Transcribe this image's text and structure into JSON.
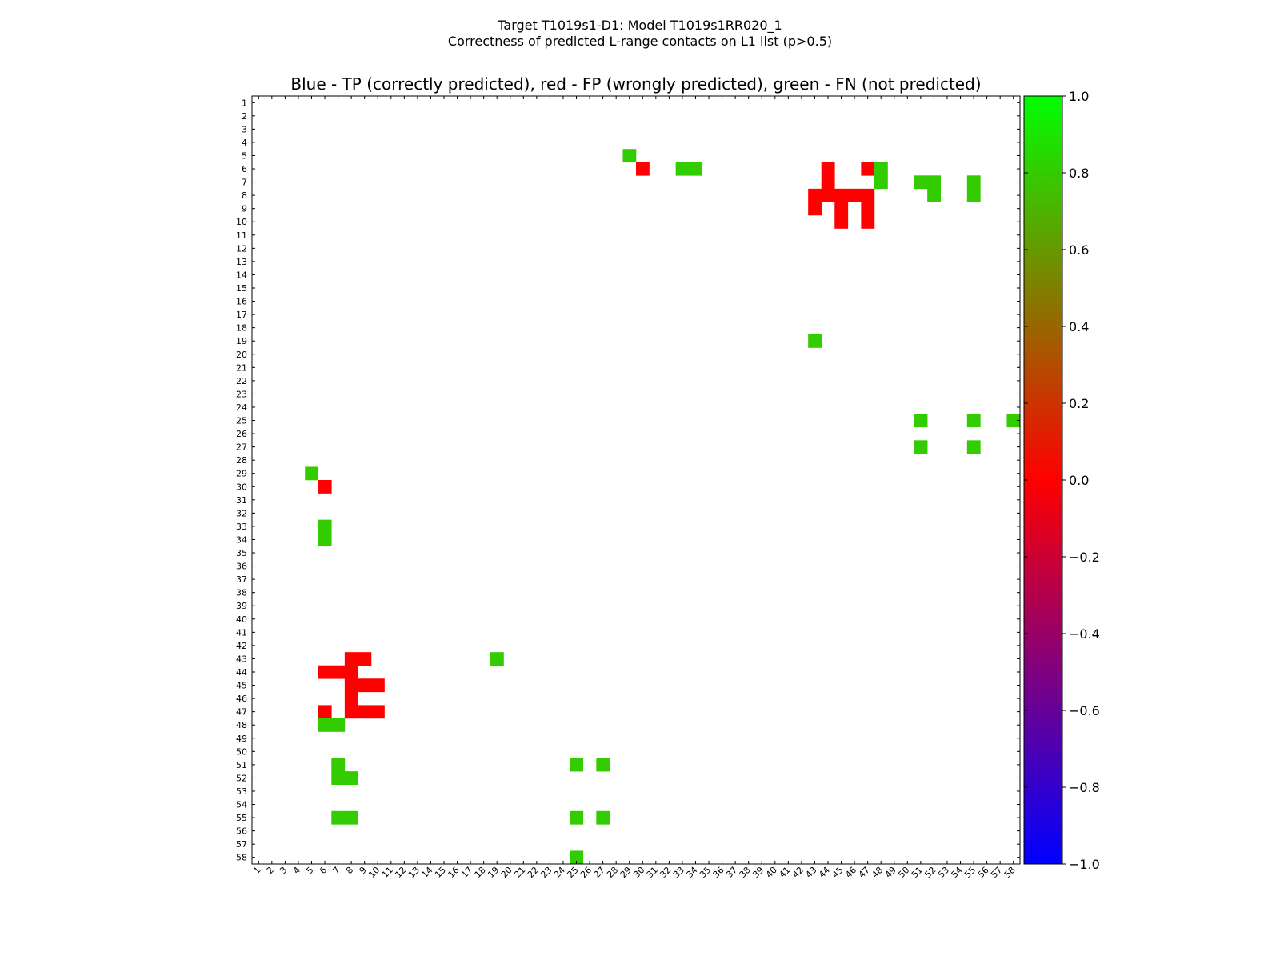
{
  "figure": {
    "title_line1": "Target T1019s1-D1: Model T1019s1RR020_1",
    "title_line2": "Correctness of predicted L-range contacts on L1 list (p>0.5)",
    "axes_title": "Blue - TP (correctly predicted), red - FP (wrongly predicted), green - FN (not predicted)"
  },
  "colors": {
    "tp": "#0000ff",
    "fp": "#ff0000",
    "fn": "#33cc00",
    "background": "#ffffff"
  },
  "chart_data": {
    "type": "heatmap",
    "title": "Blue - TP (correctly predicted), red - FP (wrongly predicted), green - FN (not predicted)",
    "xlabel": "",
    "ylabel": "",
    "x_ticks": [
      "1",
      "2",
      "3",
      "4",
      "5",
      "6",
      "7",
      "8",
      "9",
      "10",
      "11",
      "12",
      "13",
      "14",
      "15",
      "16",
      "17",
      "18",
      "19",
      "20",
      "21",
      "22",
      "23",
      "24",
      "25",
      "26",
      "27",
      "28",
      "29",
      "30",
      "31",
      "32",
      "33",
      "34",
      "35",
      "36",
      "37",
      "38",
      "39",
      "40",
      "41",
      "42",
      "43",
      "44",
      "45",
      "46",
      "47",
      "48",
      "49",
      "50",
      "51",
      "52",
      "53",
      "54",
      "55",
      "56",
      "57",
      "58"
    ],
    "y_ticks": [
      "1",
      "2",
      "3",
      "4",
      "5",
      "6",
      "7",
      "8",
      "9",
      "10",
      "11",
      "12",
      "13",
      "14",
      "15",
      "16",
      "17",
      "18",
      "19",
      "20",
      "21",
      "22",
      "23",
      "24",
      "25",
      "26",
      "27",
      "28",
      "29",
      "30",
      "31",
      "32",
      "33",
      "34",
      "35",
      "36",
      "37",
      "38",
      "39",
      "40",
      "41",
      "42",
      "43",
      "44",
      "45",
      "46",
      "47",
      "48",
      "49",
      "50",
      "51",
      "52",
      "53",
      "54",
      "55",
      "56",
      "57",
      "58"
    ],
    "grid": false,
    "colorbar": {
      "vmin": -1.0,
      "vmax": 1.0,
      "tick_labels": [
        "1.0",
        "0.8",
        "0.6",
        "0.4",
        "0.2",
        "0.0",
        "−0.2",
        "−0.4",
        "−0.6",
        "−0.8",
        "−1.0"
      ],
      "tick_values": [
        1.0,
        0.8,
        0.6,
        0.4,
        0.2,
        0.0,
        -0.2,
        -0.4,
        -0.6,
        -0.8,
        -1.0
      ],
      "colormap": "brg"
    },
    "cells": [
      {
        "x": 29,
        "y": 5,
        "value": 0.8
      },
      {
        "x": 30,
        "y": 6,
        "value": 0.0
      },
      {
        "x": 33,
        "y": 6,
        "value": 0.8
      },
      {
        "x": 34,
        "y": 6,
        "value": 0.8
      },
      {
        "x": 44,
        "y": 6,
        "value": 0.0
      },
      {
        "x": 47,
        "y": 6,
        "value": 0.0
      },
      {
        "x": 48,
        "y": 6,
        "value": 0.8
      },
      {
        "x": 44,
        "y": 7,
        "value": 0.0
      },
      {
        "x": 48,
        "y": 7,
        "value": 0.8
      },
      {
        "x": 51,
        "y": 7,
        "value": 0.8
      },
      {
        "x": 52,
        "y": 7,
        "value": 0.8
      },
      {
        "x": 55,
        "y": 7,
        "value": 0.8
      },
      {
        "x": 43,
        "y": 8,
        "value": 0.0
      },
      {
        "x": 44,
        "y": 8,
        "value": 0.0
      },
      {
        "x": 45,
        "y": 8,
        "value": 0.0
      },
      {
        "x": 46,
        "y": 8,
        "value": 0.0
      },
      {
        "x": 47,
        "y": 8,
        "value": 0.0
      },
      {
        "x": 52,
        "y": 8,
        "value": 0.8
      },
      {
        "x": 55,
        "y": 8,
        "value": 0.8
      },
      {
        "x": 43,
        "y": 9,
        "value": 0.0
      },
      {
        "x": 45,
        "y": 9,
        "value": 0.0
      },
      {
        "x": 47,
        "y": 9,
        "value": 0.0
      },
      {
        "x": 45,
        "y": 10,
        "value": 0.0
      },
      {
        "x": 47,
        "y": 10,
        "value": 0.0
      },
      {
        "x": 43,
        "y": 19,
        "value": 0.8
      },
      {
        "x": 51,
        "y": 25,
        "value": 0.8
      },
      {
        "x": 55,
        "y": 25,
        "value": 0.8
      },
      {
        "x": 58,
        "y": 25,
        "value": 0.8
      },
      {
        "x": 51,
        "y": 27,
        "value": 0.8
      },
      {
        "x": 55,
        "y": 27,
        "value": 0.8
      },
      {
        "x": 5,
        "y": 29,
        "value": 0.8
      },
      {
        "x": 6,
        "y": 30,
        "value": 0.0
      },
      {
        "x": 6,
        "y": 33,
        "value": 0.8
      },
      {
        "x": 6,
        "y": 34,
        "value": 0.8
      },
      {
        "x": 8,
        "y": 43,
        "value": 0.0
      },
      {
        "x": 9,
        "y": 43,
        "value": 0.0
      },
      {
        "x": 19,
        "y": 43,
        "value": 0.8
      },
      {
        "x": 6,
        "y": 44,
        "value": 0.0
      },
      {
        "x": 7,
        "y": 44,
        "value": 0.0
      },
      {
        "x": 8,
        "y": 44,
        "value": 0.0
      },
      {
        "x": 8,
        "y": 45,
        "value": 0.0
      },
      {
        "x": 9,
        "y": 45,
        "value": 0.0
      },
      {
        "x": 10,
        "y": 45,
        "value": 0.0
      },
      {
        "x": 8,
        "y": 46,
        "value": 0.0
      },
      {
        "x": 6,
        "y": 47,
        "value": 0.0
      },
      {
        "x": 8,
        "y": 47,
        "value": 0.0
      },
      {
        "x": 9,
        "y": 47,
        "value": 0.0
      },
      {
        "x": 10,
        "y": 47,
        "value": 0.0
      },
      {
        "x": 6,
        "y": 48,
        "value": 0.8
      },
      {
        "x": 7,
        "y": 48,
        "value": 0.8
      },
      {
        "x": 7,
        "y": 51,
        "value": 0.8
      },
      {
        "x": 25,
        "y": 51,
        "value": 0.8
      },
      {
        "x": 27,
        "y": 51,
        "value": 0.8
      },
      {
        "x": 7,
        "y": 52,
        "value": 0.8
      },
      {
        "x": 8,
        "y": 52,
        "value": 0.8
      },
      {
        "x": 7,
        "y": 55,
        "value": 0.8
      },
      {
        "x": 8,
        "y": 55,
        "value": 0.8
      },
      {
        "x": 25,
        "y": 55,
        "value": 0.8
      },
      {
        "x": 27,
        "y": 55,
        "value": 0.8
      },
      {
        "x": 25,
        "y": 58,
        "value": 0.8
      }
    ]
  }
}
